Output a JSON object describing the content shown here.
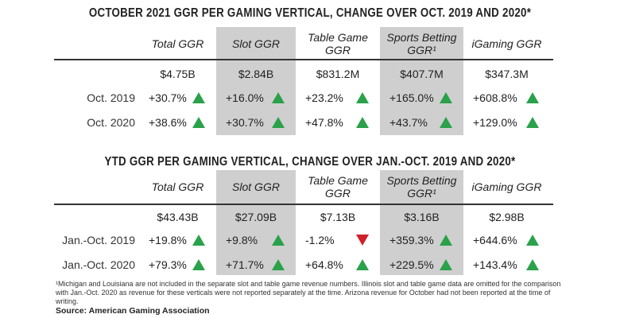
{
  "columns": [
    "Total GGR",
    "Slot GGR",
    "Table Game GGR",
    "Sports Betting GGR¹",
    "iGaming GGR"
  ],
  "highlight_color": "#cfcfcf",
  "up_color": "#2aa14a",
  "down_color": "#d0202a",
  "tables": [
    {
      "title": "OCTOBER 2021 GGR PER GAMING VERTICAL, CHANGE OVER OCT. 2019 AND 2020*",
      "totals": [
        "$4.75B",
        "$2.84B",
        "$831.2M",
        "$407.7M",
        "$347.3M"
      ],
      "rows": [
        {
          "label": "Oct. 2019",
          "values": [
            "+30.7%",
            "+16.0%",
            "+23.2%",
            "+165.0%",
            "+608.8%"
          ],
          "trend": [
            "up",
            "up",
            "up",
            "up",
            "up"
          ]
        },
        {
          "label": "Oct. 2020",
          "values": [
            "+38.6%",
            "+30.7%",
            "+47.8%",
            "+43.7%",
            "+129.0%"
          ],
          "trend": [
            "up",
            "up",
            "up",
            "up",
            "up"
          ]
        }
      ]
    },
    {
      "title": "YTD GGR PER GAMING VERTICAL, CHANGE OVER JAN.-OCT. 2019 AND 2020*",
      "totals": [
        "$43.43B",
        "$27.09B",
        "$7.13B",
        "$3.16B",
        "$2.98B"
      ],
      "rows": [
        {
          "label": "Jan.-Oct. 2019",
          "values": [
            "+19.8%",
            "+9.8%",
            "-1.2%",
            "+359.3%",
            "+644.6%"
          ],
          "trend": [
            "up",
            "up",
            "down",
            "up",
            "up"
          ]
        },
        {
          "label": "Jan.-Oct. 2020",
          "values": [
            "+79.3%",
            "+71.7%",
            "+64.8%",
            "+229.5%",
            "+143.4%"
          ],
          "trend": [
            "up",
            "up",
            "up",
            "up",
            "up"
          ]
        }
      ]
    }
  ],
  "footnote": "¹Michigan and Louisiana are not included in the separate slot and table game revenue numbers. Illinois slot and table game data are omitted for the comparison with Jan.-Oct. 2020 as revenue for these verticals were not reported separately at the time. Arizona revenue for October had not been reported at the time of writing.",
  "source": "Source: American Gaming Association"
}
